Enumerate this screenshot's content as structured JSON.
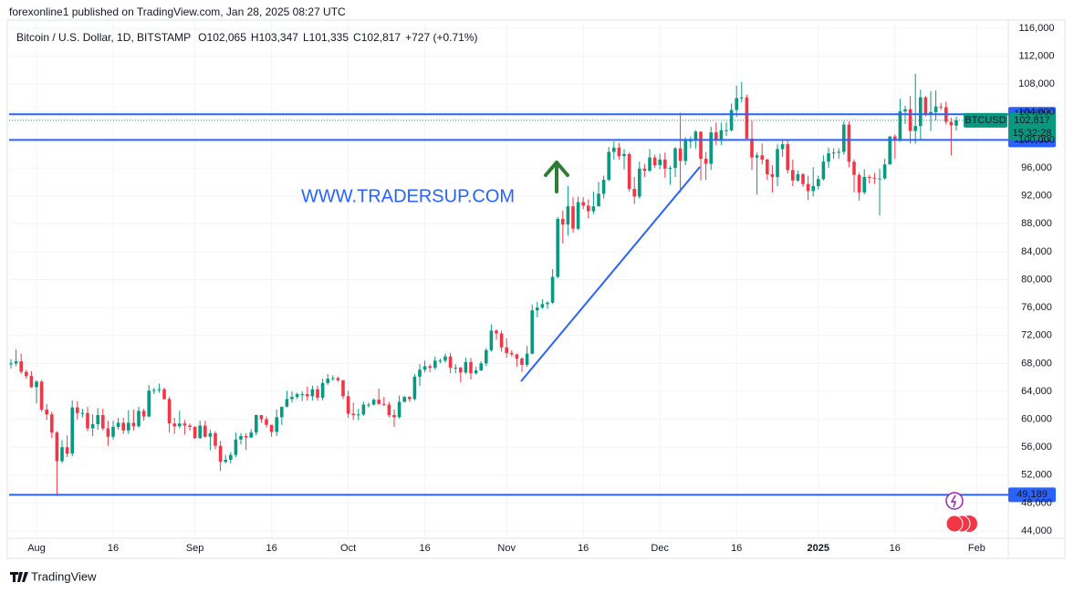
{
  "header": {
    "publisher": "forexonline1 published on TradingView.com, Jan 28, 2025 08:27 UTC"
  },
  "footer": {
    "brand": "TradingView"
  },
  "chart_data": {
    "type": "candlestick",
    "title": "Bitcoin / U.S. Dollar, 1D, BITSTAMP",
    "legend": {
      "items": [
        {
          "key": "O",
          "text": "102,065"
        },
        {
          "key": "H",
          "text": "103,347"
        },
        {
          "key": "L",
          "text": "101,335"
        },
        {
          "key": "C",
          "text": "102,817"
        }
      ],
      "change": "+727 (+0.71%)"
    },
    "annotation": "WWW.TRADERSUP.COM",
    "categories": [
      null,
      null,
      null,
      null,
      null,
      "Aug",
      null,
      null,
      null,
      null,
      null,
      null,
      null,
      null,
      null,
      null,
      null,
      null,
      null,
      null,
      "16",
      null,
      null,
      null,
      null,
      null,
      null,
      null,
      null,
      null,
      null,
      null,
      null,
      null,
      null,
      null,
      "Sep",
      null,
      null,
      null,
      null,
      null,
      null,
      null,
      null,
      null,
      null,
      null,
      null,
      null,
      null,
      "16",
      null,
      null,
      null,
      null,
      null,
      null,
      null,
      null,
      null,
      null,
      null,
      null,
      null,
      null,
      "Oct",
      null,
      null,
      null,
      null,
      null,
      null,
      null,
      null,
      null,
      null,
      null,
      null,
      null,
      null,
      "16",
      null,
      null,
      null,
      null,
      null,
      null,
      null,
      null,
      null,
      null,
      null,
      null,
      null,
      null,
      null,
      "Nov",
      null,
      null,
      null,
      null,
      null,
      null,
      null,
      null,
      null,
      null,
      null,
      null,
      null,
      null,
      "16",
      null,
      null,
      null,
      null,
      null,
      null,
      null,
      null,
      null,
      null,
      null,
      null,
      null,
      null,
      "Dec",
      null,
      null,
      null,
      null,
      null,
      null,
      null,
      null,
      null,
      null,
      null,
      null,
      null,
      null,
      "16",
      null,
      null,
      null,
      null,
      null,
      null,
      null,
      null,
      null,
      null,
      null,
      null,
      null,
      null,
      null,
      "2025",
      null,
      null,
      null,
      null,
      null,
      null,
      null,
      null,
      null,
      null,
      null,
      null,
      null,
      null,
      "16",
      null,
      null,
      null,
      null,
      null,
      null,
      null,
      null,
      null,
      null,
      null,
      null,
      null,
      null,
      null,
      "Feb"
    ],
    "open": [
      67900,
      68000,
      68300,
      66800,
      66200,
      64600,
      65400,
      61400,
      60700,
      58100,
      54000,
      56000,
      55100,
      61700,
      60900,
      60900,
      58700,
      59300,
      60600,
      58700,
      57500,
      58900,
      59500,
      58400,
      59500,
      59000,
      61200,
      60400,
      64100,
      64200,
      64300,
      62900,
      59400,
      59000,
      59400,
      59100,
      58900,
      57300,
      59100,
      57500,
      58000,
      56200,
      53900,
      54200,
      54900,
      57100,
      57600,
      57400,
      58100,
      60600,
      60000,
      59200,
      58200,
      60300,
      61800,
      62900,
      63200,
      63600,
      63600,
      63300,
      64300,
      63100,
      65200,
      65800,
      65900,
      65600,
      63300,
      60800,
      60600,
      60700,
      62100,
      62100,
      62800,
      62200,
      62100,
      60600,
      60300,
      62500,
      63200,
      62900,
      66100,
      67100,
      67600,
      67400,
      68400,
      68400,
      69000,
      67400,
      67400,
      66700,
      68200,
      66600,
      67000,
      68000,
      69900,
      72700,
      72300,
      70300,
      69500,
      69300,
      68700,
      67800,
      69400,
      75600,
      76000,
      76500,
      76700,
      80400,
      88700,
      87900,
      90500,
      87300,
      91100,
      90600,
      89800,
      90500,
      92300,
      94300,
      98300,
      98900,
      97700,
      98000,
      93000,
      91900,
      95900,
      95600,
      97500,
      96400,
      97200,
      95900,
      96000,
      98800,
      97000,
      99900,
      99900,
      101200,
      97300,
      96600,
      101100,
      100000,
      101400,
      101400,
      104300,
      106000,
      106100,
      100200,
      97500,
      97800,
      97200,
      95100,
      94700,
      98700,
      99400,
      95700,
      94200,
      95100,
      93700,
      92700,
      93400,
      94400,
      96900,
      98100,
      98200,
      98300,
      102200,
      96900,
      95000,
      92500,
      94700,
      94600,
      94500,
      94500,
      96500,
      100500,
      99900,
      104100,
      104400,
      101300,
      102000,
      106100,
      103700,
      104000,
      104800,
      104700,
      102600,
      102065,
      null,
      null,
      null,
      null
    ],
    "high": [
      68600,
      70000,
      69400,
      67100,
      66900,
      65600,
      65600,
      62200,
      61100,
      58300,
      57000,
      57700,
      62700,
      62600,
      61500,
      61800,
      60700,
      61600,
      61500,
      59800,
      59800,
      60200,
      60200,
      61300,
      61400,
      61800,
      61500,
      64900,
      64500,
      65100,
      64500,
      63200,
      60200,
      61200,
      59900,
      59400,
      59000,
      59800,
      59800,
      58500,
      58300,
      56900,
      54900,
      55300,
      58100,
      58000,
      58000,
      58600,
      60700,
      60600,
      60400,
      59200,
      61400,
      61800,
      64100,
      64000,
      63800,
      64000,
      64700,
      64800,
      64800,
      65800,
      66500,
      66300,
      66100,
      65600,
      64100,
      62400,
      61500,
      62500,
      62400,
      63000,
      64400,
      63200,
      62500,
      61400,
      63400,
      63400,
      63300,
      66500,
      67900,
      68400,
      67900,
      69000,
      68700,
      69400,
      69500,
      67900,
      67500,
      68800,
      68800,
      67500,
      68300,
      70200,
      73600,
      72900,
      72700,
      71600,
      69900,
      69400,
      68900,
      70500,
      76400,
      76800,
      77200,
      76900,
      81500,
      89000,
      89900,
      93400,
      91800,
      91900,
      91800,
      91500,
      92600,
      94000,
      94900,
      99000,
      99800,
      99600,
      98700,
      98200,
      94700,
      96900,
      96600,
      98700,
      97900,
      98000,
      98200,
      96300,
      99000,
      103900,
      100400,
      100500,
      101400,
      101200,
      98300,
      101900,
      102500,
      102500,
      102600,
      105200,
      107800,
      108300,
      106500,
      102800,
      98200,
      99500,
      97300,
      96400,
      99400,
      99900,
      99900,
      97200,
      95600,
      95300,
      94900,
      96100,
      94900,
      97800,
      98900,
      98800,
      98800,
      102700,
      102700,
      97200,
      95300,
      95800,
      95000,
      95300,
      95900,
      97300,
      100600,
      100800,
      105900,
      104900,
      106300,
      109500,
      107200,
      106300,
      107000,
      107100,
      105300,
      105500,
      103200,
      103347,
      null,
      null,
      null,
      null
    ],
    "low": [
      67300,
      67600,
      66500,
      65800,
      64500,
      62300,
      61100,
      59900,
      57300,
      49000,
      53700,
      54600,
      54700,
      60000,
      60300,
      58300,
      57600,
      58500,
      58400,
      56200,
      57100,
      58500,
      57900,
      57900,
      58400,
      58800,
      59800,
      60300,
      63600,
      63800,
      62800,
      58100,
      57900,
      58700,
      57800,
      58400,
      57200,
      57200,
      57400,
      55600,
      55700,
      52600,
      53700,
      53700,
      54600,
      56400,
      55600,
      57300,
      57700,
      59500,
      58800,
      57500,
      57600,
      59200,
      61700,
      62400,
      62900,
      62600,
      62700,
      62700,
      62700,
      62700,
      64900,
      65500,
      65400,
      62900,
      60200,
      59900,
      59900,
      60500,
      61700,
      62000,
      62100,
      61900,
      60300,
      58900,
      60100,
      62400,
      62500,
      62700,
      64800,
      66700,
      66700,
      67100,
      68000,
      68100,
      66600,
      66600,
      65300,
      66500,
      65700,
      66400,
      66900,
      67600,
      69700,
      71400,
      69700,
      68800,
      69000,
      67500,
      66800,
      67500,
      69300,
      74600,
      75800,
      75800,
      76500,
      80200,
      85200,
      86300,
      86700,
      87100,
      90100,
      88800,
      89400,
      90500,
      91600,
      94100,
      97200,
      97200,
      95800,
      92600,
      90800,
      91600,
      94700,
      95400,
      96000,
      95800,
      94600,
      93600,
      94700,
      92500,
      96400,
      98800,
      98800,
      94200,
      94300,
      95700,
      99300,
      99300,
      100600,
      101200,
      103300,
      105400,
      100000,
      95700,
      92200,
      96500,
      94300,
      92500,
      93400,
      97600,
      95200,
      93400,
      94000,
      93300,
      91400,
      91900,
      92900,
      94200,
      96000,
      97300,
      97300,
      97900,
      96100,
      92500,
      91300,
      92200,
      93800,
      93700,
      89200,
      94300,
      96500,
      97300,
      99800,
      102300,
      99500,
      99500,
      100100,
      103400,
      101300,
      102800,
      104300,
      102200,
      97800,
      101335,
      null,
      null,
      null,
      null
    ],
    "close": [
      68000,
      68300,
      66800,
      66200,
      64600,
      65400,
      61400,
      60700,
      58100,
      54000,
      56000,
      55100,
      61700,
      60900,
      60900,
      58700,
      59300,
      60600,
      58700,
      57500,
      58900,
      59500,
      58400,
      59500,
      59000,
      61200,
      60400,
      64100,
      64200,
      64300,
      62900,
      59400,
      59000,
      59400,
      59100,
      58900,
      57300,
      59100,
      57500,
      58000,
      56200,
      53900,
      54200,
      54900,
      57100,
      57600,
      57400,
      58100,
      60600,
      60000,
      59200,
      58200,
      60300,
      61800,
      62900,
      63200,
      63600,
      63600,
      63300,
      64300,
      63100,
      65200,
      65800,
      65900,
      65600,
      63300,
      60800,
      60600,
      60700,
      62100,
      62100,
      62800,
      62200,
      62100,
      60600,
      60300,
      62500,
      63200,
      62900,
      66100,
      67100,
      67600,
      67400,
      68400,
      68400,
      69000,
      67400,
      67400,
      66700,
      68200,
      66600,
      67000,
      68000,
      69900,
      72700,
      72300,
      70300,
      69500,
      69300,
      68700,
      67800,
      69400,
      75600,
      76000,
      76500,
      76700,
      80400,
      88700,
      87900,
      90500,
      87300,
      91100,
      90600,
      89800,
      90500,
      92300,
      94300,
      98300,
      98900,
      97700,
      98000,
      93000,
      91900,
      95900,
      95600,
      97500,
      96400,
      97200,
      95900,
      96000,
      98800,
      97000,
      99900,
      99900,
      101200,
      97300,
      96600,
      101100,
      100000,
      101400,
      101400,
      104300,
      106000,
      106100,
      100200,
      97500,
      97800,
      97200,
      95100,
      94700,
      98700,
      99400,
      95700,
      94200,
      95100,
      93700,
      92700,
      93400,
      94400,
      96900,
      98100,
      98200,
      98300,
      102200,
      96900,
      95000,
      92500,
      94700,
      94600,
      94500,
      94500,
      96500,
      100500,
      99900,
      104100,
      104400,
      101300,
      102000,
      106100,
      103700,
      104000,
      104800,
      104700,
      102600,
      102100,
      102817,
      null,
      null,
      null,
      null
    ],
    "up_color": "#089981",
    "down_color": "#f23645",
    "ylim": [
      42960,
      117180
    ],
    "yticks": [
      {
        "value": 44000,
        "label": "44,000"
      },
      {
        "value": 48000,
        "label": "48,000"
      },
      {
        "value": 52000,
        "label": "52,000"
      },
      {
        "value": 56000,
        "label": "56,000"
      },
      {
        "value": 60000,
        "label": "60,000"
      },
      {
        "value": 64000,
        "label": "64,000"
      },
      {
        "value": 68000,
        "label": "68,000"
      },
      {
        "value": 72000,
        "label": "72,000"
      },
      {
        "value": 76000,
        "label": "76,000"
      },
      {
        "value": 80000,
        "label": "80,000"
      },
      {
        "value": 84000,
        "label": "84,000"
      },
      {
        "value": 88000,
        "label": "88,000"
      },
      {
        "value": 92000,
        "label": "92,000"
      },
      {
        "value": 96000,
        "label": "96,000"
      },
      {
        "value": 100000,
        "label": "100,000"
      },
      {
        "value": 104000,
        "label": "104,000"
      },
      {
        "value": 108000,
        "label": "108,000"
      },
      {
        "value": 112000,
        "label": "112,000"
      },
      {
        "value": 116000,
        "label": "116,000"
      }
    ],
    "grid": true,
    "levels": [
      {
        "value": 103694,
        "label": "103,694"
      },
      {
        "value": 100018,
        "label": "100,018"
      },
      {
        "value": 49189,
        "label": "49,189"
      }
    ],
    "level_color": "#2962ff",
    "last_price": {
      "symbol": "BTCUSD",
      "value": 102817,
      "label": "102,817",
      "countdown": "15:32:28"
    }
  }
}
